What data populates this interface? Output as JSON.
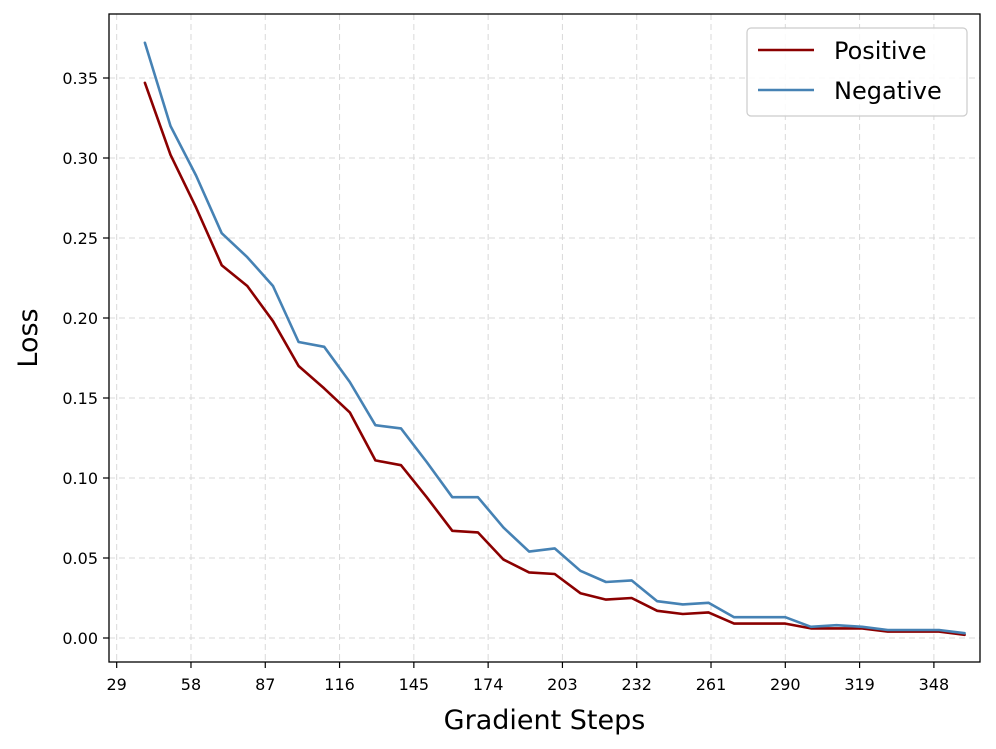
{
  "chart_data": {
    "type": "line",
    "xlabel": "Gradient Steps",
    "ylabel": "Loss",
    "xlim": [
      26,
      366
    ],
    "ylim": [
      -0.015,
      0.39
    ],
    "x_ticks": [
      29,
      58,
      87,
      116,
      145,
      174,
      203,
      232,
      261,
      290,
      319,
      348
    ],
    "y_ticks": [
      0.0,
      0.05,
      0.1,
      0.15,
      0.2,
      0.25,
      0.3,
      0.35
    ],
    "y_tick_labels": [
      "0.00",
      "0.05",
      "0.10",
      "0.15",
      "0.20",
      "0.25",
      "0.30",
      "0.35"
    ],
    "grid": true,
    "legend_position": "top-right",
    "x": [
      40,
      50,
      60,
      70,
      80,
      90,
      100,
      110,
      120,
      130,
      140,
      150,
      160,
      170,
      180,
      190,
      200,
      210,
      220,
      230,
      240,
      250,
      260,
      270,
      280,
      290,
      300,
      310,
      320,
      330,
      340,
      350,
      360
    ],
    "series": [
      {
        "name": "Positive",
        "color": "#8b0000",
        "values": [
          0.347,
          0.302,
          0.269,
          0.233,
          0.22,
          0.198,
          0.17,
          0.156,
          0.141,
          0.111,
          0.108,
          0.088,
          0.067,
          0.066,
          0.049,
          0.041,
          0.04,
          0.028,
          0.024,
          0.025,
          0.017,
          0.015,
          0.016,
          0.009,
          0.009,
          0.009,
          0.006,
          0.006,
          0.006,
          0.004,
          0.004,
          0.004,
          0.002
        ]
      },
      {
        "name": "Negative",
        "color": "#4682b4",
        "values": [
          0.372,
          0.32,
          0.289,
          0.253,
          0.238,
          0.22,
          0.185,
          0.182,
          0.16,
          0.133,
          0.131,
          0.11,
          0.088,
          0.088,
          0.069,
          0.054,
          0.056,
          0.042,
          0.035,
          0.036,
          0.023,
          0.021,
          0.022,
          0.013,
          0.013,
          0.013,
          0.007,
          0.008,
          0.007,
          0.005,
          0.005,
          0.005,
          0.003
        ]
      }
    ]
  }
}
